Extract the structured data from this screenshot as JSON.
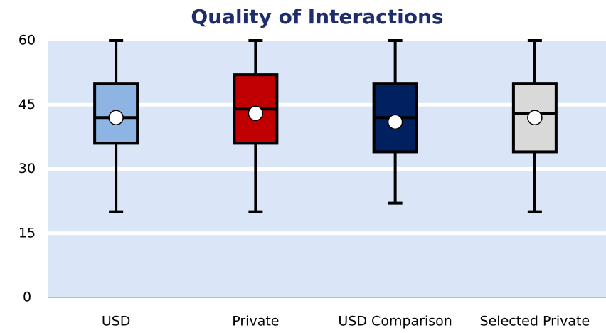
{
  "chart_data": {
    "type": "box",
    "title": "Quality of Interactions",
    "categories": [
      "USD",
      "Private",
      "USD Comparison",
      "Selected Private"
    ],
    "colors": [
      "#8db4e2",
      "#c00000",
      "#002060",
      "#d9d9d9"
    ],
    "min": [
      20,
      20,
      22,
      20
    ],
    "q1": [
      36,
      36,
      34,
      34
    ],
    "median": [
      42,
      44,
      42,
      43
    ],
    "q3": [
      50,
      52,
      50,
      50
    ],
    "max": [
      60,
      60,
      60,
      60
    ],
    "mean": [
      42,
      43,
      41,
      42
    ],
    "ylim": [
      0,
      60
    ],
    "yticks": [
      0,
      15,
      30,
      45,
      60
    ],
    "grid": true
  }
}
